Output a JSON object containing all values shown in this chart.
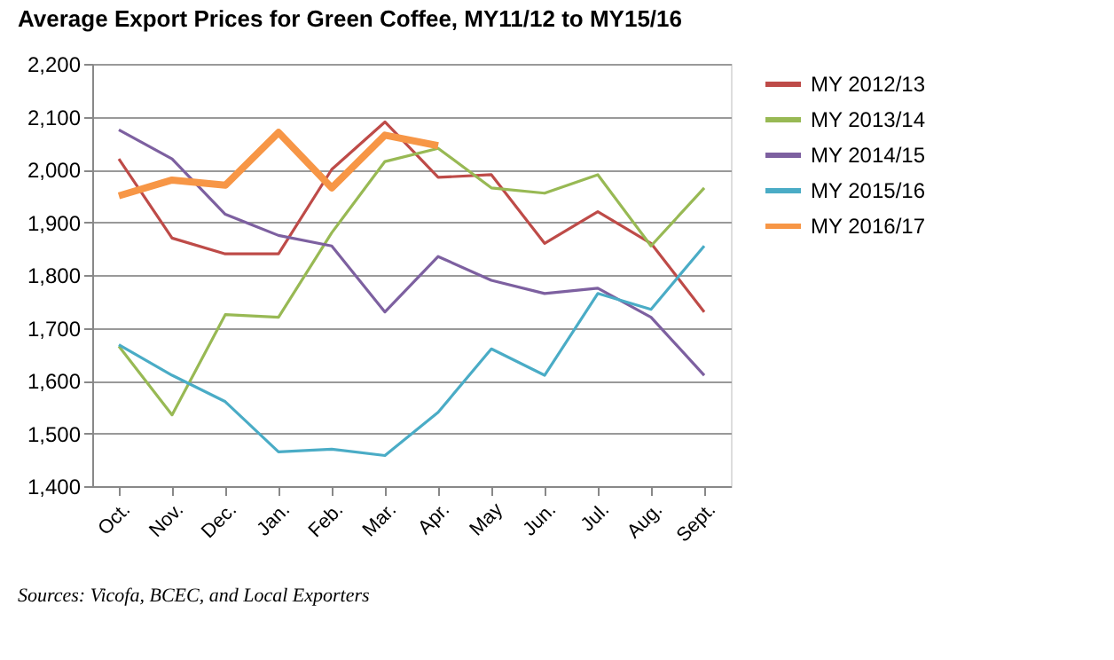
{
  "chart_data": {
    "type": "line",
    "title": "Average Export Prices for Green Coffee, MY11/12 to MY15/16",
    "categories": [
      "Oct.",
      "Nov.",
      "Dec.",
      "Jan.",
      "Feb.",
      "Mar.",
      "Apr.",
      "May",
      "Jun.",
      "Jul.",
      "Aug.",
      "Sept."
    ],
    "series": [
      {
        "name": "MY 2012/13",
        "color": "#be4b48",
        "values": [
          2020,
          1870,
          1840,
          1840,
          2000,
          2090,
          1985,
          1990,
          1860,
          1920,
          1860,
          1730
        ]
      },
      {
        "name": "MY 2013/14",
        "color": "#98b954",
        "values": [
          1665,
          1535,
          1725,
          1720,
          1880,
          2015,
          2040,
          1965,
          1955,
          1990,
          1855,
          1965
        ]
      },
      {
        "name": "MY 2014/15",
        "color": "#7d60a0",
        "values": [
          2075,
          2020,
          1915,
          1875,
          1855,
          1730,
          1835,
          1790,
          1765,
          1775,
          1720,
          1610
        ]
      },
      {
        "name": "MY 2015/16",
        "color": "#4aacc6",
        "values": [
          1668,
          1610,
          1560,
          1465,
          1470,
          1458,
          1540,
          1660,
          1610,
          1765,
          1735,
          1855
        ]
      },
      {
        "name": "MY 2016/17",
        "color": "#f79646",
        "values": [
          1950,
          1980,
          1970,
          2070,
          1965,
          2065,
          2045,
          null,
          null,
          null,
          null,
          null
        ]
      }
    ],
    "ylim": [
      1400,
      2200
    ],
    "yticks": [
      {
        "value": 1400,
        "label": "1,400"
      },
      {
        "value": 1500,
        "label": "1,500"
      },
      {
        "value": 1600,
        "label": "1,600"
      },
      {
        "value": 1700,
        "label": "1,700"
      },
      {
        "value": 1800,
        "label": "1,800"
      },
      {
        "value": 1900,
        "label": "1,900"
      },
      {
        "value": 2000,
        "label": "2,000"
      },
      {
        "value": 2100,
        "label": "2,100"
      },
      {
        "value": 2200,
        "label": "2,200"
      }
    ],
    "grid": "y",
    "legend": "right",
    "marker": "none",
    "line_style": "solid",
    "annotations": [
      "Sources: Vicofa, BCEC, and Local Exporters"
    ]
  }
}
